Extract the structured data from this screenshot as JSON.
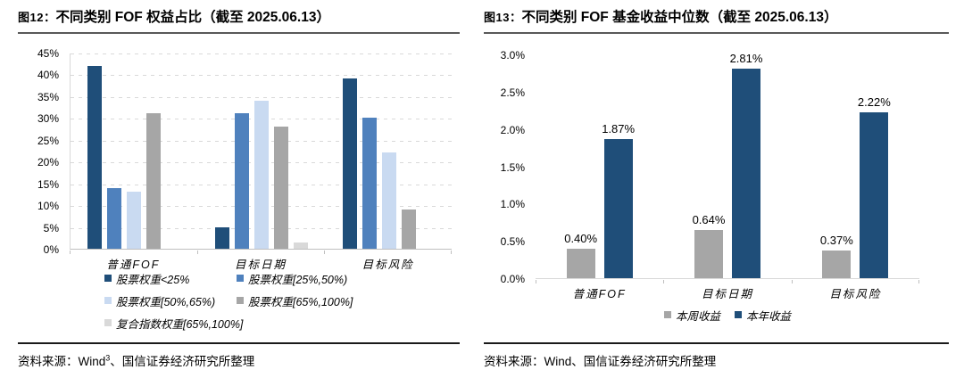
{
  "figures": [
    {
      "label": "图12：",
      "title": "不同类别 FOF 权益占比（截至 2025.06.13）",
      "source_pre": "资料来源：Wind",
      "source_sup": "3",
      "source_post": "、国信证券经济研究所整理"
    },
    {
      "label": "图13：",
      "title": "不同类别 FOF 基金收益中位数（截至 2025.06.13）",
      "source_pre": "资料来源：Wind",
      "source_sup": "",
      "source_post": "、国信证券经济研究所整理"
    }
  ],
  "colors": {
    "navy": "#1F4E79",
    "medium_blue": "#4F81BD",
    "light_blue": "#C9DAF1",
    "gray": "#A6A6A6",
    "light_gray": "#D9D9D9",
    "gridline": "#D9D9D9",
    "axis": "#BFBFBF",
    "title_rule": "#595959",
    "source_rule": "#1A1A1A"
  },
  "chart_data": [
    {
      "type": "bar",
      "title": "不同类别 FOF 权益占比（截至 2025.06.13）",
      "figure_label": "图12",
      "categories": [
        "普通FOF",
        "目标日期",
        "目标风险"
      ],
      "series": [
        {
          "name": "股票权重<25%",
          "color": "#1F4E79",
          "values": [
            42,
            5,
            39
          ]
        },
        {
          "name": "股票权重[25%,50%)",
          "color": "#4F81BD",
          "values": [
            14,
            31,
            30
          ]
        },
        {
          "name": "股票权重[50%,65%)",
          "color": "#C9DAF1",
          "values": [
            13,
            34,
            22
          ]
        },
        {
          "name": "股票权重[65%,100%]",
          "color": "#A6A6A6",
          "values": [
            31,
            28,
            9
          ]
        },
        {
          "name": "复合指数权重[65%,100%]",
          "color": "#D9D9D9",
          "values": [
            0,
            1.5,
            0
          ]
        }
      ],
      "ylim": [
        0,
        45
      ],
      "ytick_step": 5,
      "ytick_labels": [
        "0%",
        "5%",
        "10%",
        "15%",
        "20%",
        "25%",
        "30%",
        "35%",
        "40%",
        "45%"
      ],
      "grid": "dashed-horizontal",
      "legend_position": "bottom-two-columns",
      "data_labels": false
    },
    {
      "type": "bar",
      "title": "不同类别 FOF 基金收益中位数（截至 2025.06.13）",
      "figure_label": "图13",
      "categories": [
        "普通FOF",
        "目标日期",
        "目标风险"
      ],
      "series": [
        {
          "name": "本周收益",
          "color": "#A6A6A6",
          "values": [
            0.4,
            0.64,
            0.37
          ],
          "labels": [
            "0.40%",
            "0.64%",
            "0.37%"
          ]
        },
        {
          "name": "本年收益",
          "color": "#1F4E79",
          "values": [
            1.87,
            2.81,
            2.22
          ],
          "labels": [
            "1.87%",
            "2.81%",
            "2.22%"
          ]
        }
      ],
      "ylim": [
        0,
        3.0
      ],
      "ytick_step": 0.5,
      "ytick_labels": [
        "0.0%",
        "0.5%",
        "1.0%",
        "1.5%",
        "2.0%",
        "2.5%",
        "3.0%"
      ],
      "grid": "none",
      "legend_position": "bottom-center-row",
      "data_labels": true
    }
  ]
}
